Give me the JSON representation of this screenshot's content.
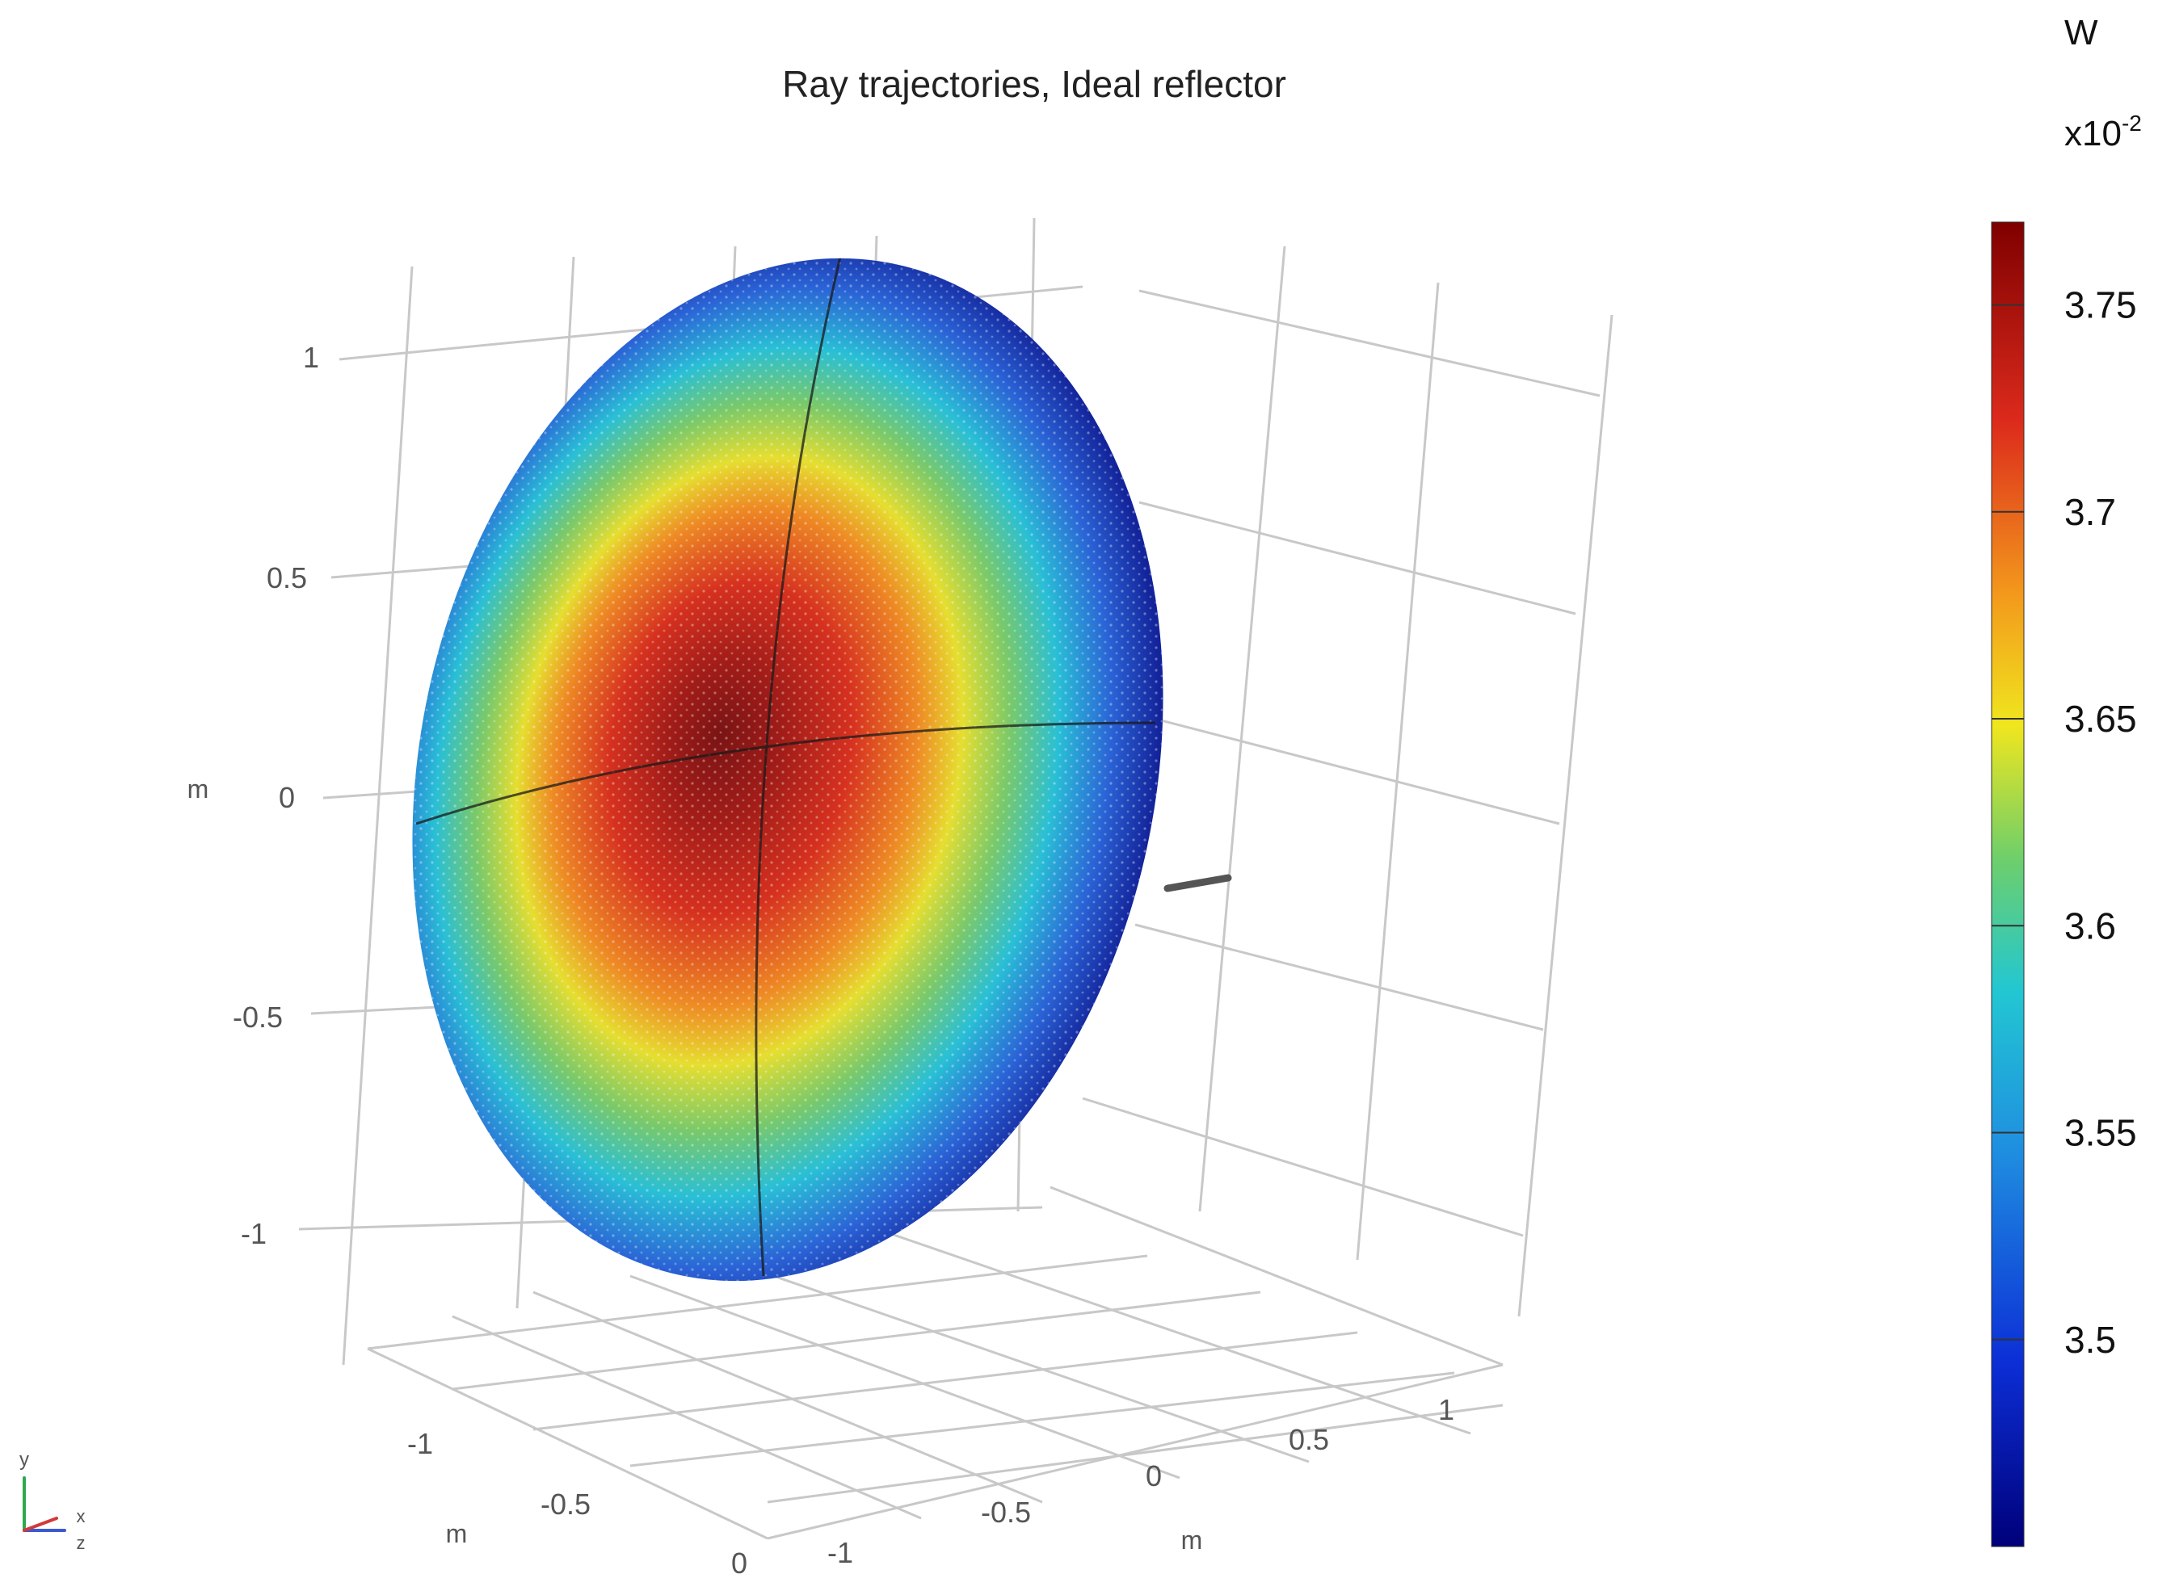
{
  "chart_data": {
    "type": "3d-surface",
    "title": "Ray trajectories, Ideal reflector",
    "axes": {
      "y": {
        "label": "m",
        "ticks": [
          "1",
          "0.5",
          "0",
          "-0.5",
          "-1"
        ]
      },
      "x": {
        "label": "m",
        "ticks": [
          "-1",
          "-0.5",
          "0"
        ]
      },
      "z": {
        "label": "m",
        "ticks": [
          "-1",
          "-0.5",
          "0",
          "0.5",
          "1"
        ]
      }
    },
    "grid": true,
    "colorbar": {
      "unit": "W",
      "multiplier_base": "x10",
      "multiplier_exp": "-2",
      "ticks": [
        "3.75",
        "3.7",
        "3.65",
        "3.6",
        "3.55",
        "3.5"
      ],
      "range": [
        3.45,
        3.77
      ],
      "colormap": "rainbow"
    },
    "surface": {
      "description_values": {
        "center": 3.75,
        "edge": 3.46
      }
    },
    "triad": {
      "labels": [
        "y",
        "x",
        "z"
      ]
    }
  },
  "colors": {
    "dark_red": "#7f0000",
    "red": "#d7261e",
    "orange": "#f08a1c",
    "yellow": "#f4e21c",
    "green": "#63c66a",
    "cyan": "#22c3d8",
    "blue": "#1f4fd8",
    "navy": "#00007a",
    "grid": "#c8c8c8",
    "triad_y": "#2fa84f",
    "triad_x": "#d23a3a",
    "triad_z": "#3a5ad2"
  }
}
